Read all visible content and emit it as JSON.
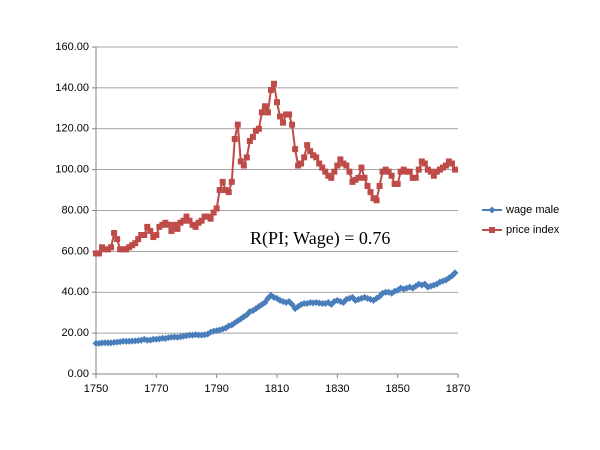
{
  "chart_data": {
    "type": "line",
    "x": [
      1750,
      1751,
      1752,
      1753,
      1754,
      1755,
      1756,
      1757,
      1758,
      1759,
      1760,
      1761,
      1762,
      1763,
      1764,
      1765,
      1766,
      1767,
      1768,
      1769,
      1770,
      1771,
      1772,
      1773,
      1774,
      1775,
      1776,
      1777,
      1778,
      1779,
      1780,
      1781,
      1782,
      1783,
      1784,
      1785,
      1786,
      1787,
      1788,
      1789,
      1790,
      1791,
      1792,
      1793,
      1794,
      1795,
      1796,
      1797,
      1798,
      1799,
      1800,
      1801,
      1802,
      1803,
      1804,
      1805,
      1806,
      1807,
      1808,
      1809,
      1810,
      1811,
      1812,
      1813,
      1814,
      1815,
      1816,
      1817,
      1818,
      1819,
      1820,
      1821,
      1822,
      1823,
      1824,
      1825,
      1826,
      1827,
      1828,
      1829,
      1830,
      1831,
      1832,
      1833,
      1834,
      1835,
      1836,
      1837,
      1838,
      1839,
      1840,
      1841,
      1842,
      1843,
      1844,
      1845,
      1846,
      1847,
      1848,
      1849,
      1850,
      1851,
      1852,
      1853,
      1854,
      1855,
      1856,
      1857,
      1858,
      1859,
      1860,
      1861,
      1862,
      1863,
      1864,
      1865,
      1866,
      1867,
      1868,
      1869
    ],
    "series": [
      {
        "name": "wage male",
        "color": "#4a7ebb",
        "marker": "diamond",
        "values": [
          15,
          15,
          15.2,
          15.3,
          15.3,
          15.2,
          15.5,
          15.6,
          15.8,
          16,
          16,
          16,
          16.1,
          16.2,
          16.3,
          16.5,
          17,
          16.5,
          16.6,
          17,
          17,
          17.2,
          17.5,
          17.4,
          17.8,
          18,
          18.1,
          18,
          18.2,
          18.5,
          18.7,
          19,
          19,
          19.2,
          19.1,
          19,
          19.2,
          19.5,
          20.5,
          21,
          21.2,
          21.5,
          22,
          22.5,
          23.5,
          24,
          25,
          26,
          27,
          28,
          29,
          30.5,
          31,
          32,
          33,
          34,
          35,
          37,
          38.5,
          37.5,
          37,
          36,
          35.5,
          35,
          35.5,
          34,
          32,
          33,
          34,
          34.5,
          34.5,
          35,
          34.8,
          35,
          34.7,
          34.5,
          34.5,
          35,
          34,
          35.5,
          36,
          35.5,
          35,
          36.5,
          37,
          37.5,
          36,
          36.5,
          37,
          37.5,
          37,
          36.5,
          36,
          37,
          38,
          39.5,
          40,
          40,
          39.5,
          40.5,
          41,
          42,
          41.5,
          42,
          42.5,
          42,
          43,
          44,
          43.5,
          44,
          42.5,
          43,
          43.5,
          44,
          45,
          45.5,
          46,
          47,
          48,
          49.5
        ]
      },
      {
        "name": "price index",
        "color": "#be4b48",
        "marker": "square",
        "values": [
          59,
          59,
          62,
          61,
          61,
          62,
          69,
          66,
          61,
          61,
          61,
          62,
          63,
          64,
          66,
          68,
          68,
          72,
          70,
          67,
          68,
          72,
          73,
          74,
          73,
          70,
          73,
          71,
          74,
          75,
          77,
          75,
          73,
          72,
          74,
          75,
          77,
          77,
          76,
          79,
          81,
          90,
          94,
          90,
          89,
          94,
          115,
          122,
          104,
          102,
          106,
          114,
          116,
          119,
          120,
          128,
          131,
          128,
          139,
          142,
          133,
          126,
          123,
          127,
          127,
          122,
          110,
          102,
          103,
          106,
          112,
          109,
          107,
          106,
          103,
          101,
          99,
          97,
          96,
          99,
          102,
          105,
          103,
          102,
          99,
          94,
          95,
          96,
          101,
          96,
          92,
          89,
          86,
          85,
          92,
          99,
          100,
          99,
          97,
          93,
          93,
          99,
          100,
          99,
          99,
          96,
          96,
          100,
          104,
          103,
          100,
          99,
          97,
          99,
          100,
          101,
          102,
          104,
          103,
          100
        ]
      }
    ],
    "xlim": [
      1750,
      1870
    ],
    "xticks": [
      1750,
      1770,
      1790,
      1810,
      1830,
      1850,
      1870
    ],
    "ylim": [
      0,
      160
    ],
    "yticks": [
      {
        "value": 0,
        "label": "0.00"
      },
      {
        "value": 20,
        "label": "20.00"
      },
      {
        "value": 40,
        "label": "40.00"
      },
      {
        "value": 60,
        "label": "60.00"
      },
      {
        "value": 80,
        "label": "80.00"
      },
      {
        "value": 100,
        "label": "100.00"
      },
      {
        "value": 120,
        "label": "120.00"
      },
      {
        "value": 140,
        "label": "140.00"
      },
      {
        "value": 160,
        "label": "160.00"
      }
    ],
    "grid": true,
    "legend": "right",
    "annotation": "R(PI; Wage) = 0.76"
  }
}
